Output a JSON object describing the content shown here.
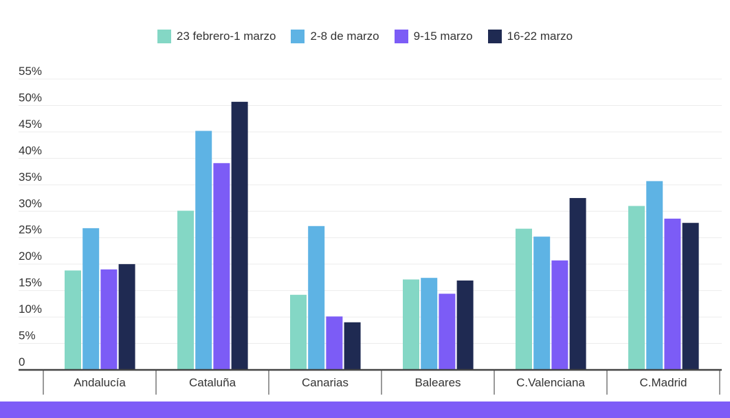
{
  "chart_data": {
    "type": "bar",
    "title": "",
    "xlabel": "",
    "ylabel": "",
    "ylim": [
      0,
      55
    ],
    "yticks": [
      "0",
      "5%",
      "10%",
      "15%",
      "20%",
      "25%",
      "30%",
      "35%",
      "40%",
      "45%",
      "50%",
      "55%"
    ],
    "grid": true,
    "legend_position": "top-center",
    "categories": [
      "Andalucía",
      "Cataluña",
      "Canarias",
      "Baleares",
      "C.Valenciana",
      "C.Madrid"
    ],
    "series": [
      {
        "name": "23 febrero-1 marzo",
        "color": "#84d7c5",
        "values": [
          18.8,
          30.1,
          14.2,
          17.1,
          26.7,
          31.0
        ]
      },
      {
        "name": "2-8 de marzo",
        "color": "#5eb3e4",
        "values": [
          26.8,
          45.2,
          27.2,
          17.4,
          25.2,
          35.7
        ]
      },
      {
        "name": "9-15 marzo",
        "color": "#7c5cf6",
        "values": [
          19.0,
          39.1,
          10.1,
          14.4,
          20.7,
          28.6
        ]
      },
      {
        "name": "16-22 marzo",
        "color": "#1f2a52",
        "values": [
          20.0,
          50.7,
          9.0,
          16.9,
          32.5,
          27.8
        ]
      }
    ]
  },
  "footer_color": "#7e5cf7"
}
